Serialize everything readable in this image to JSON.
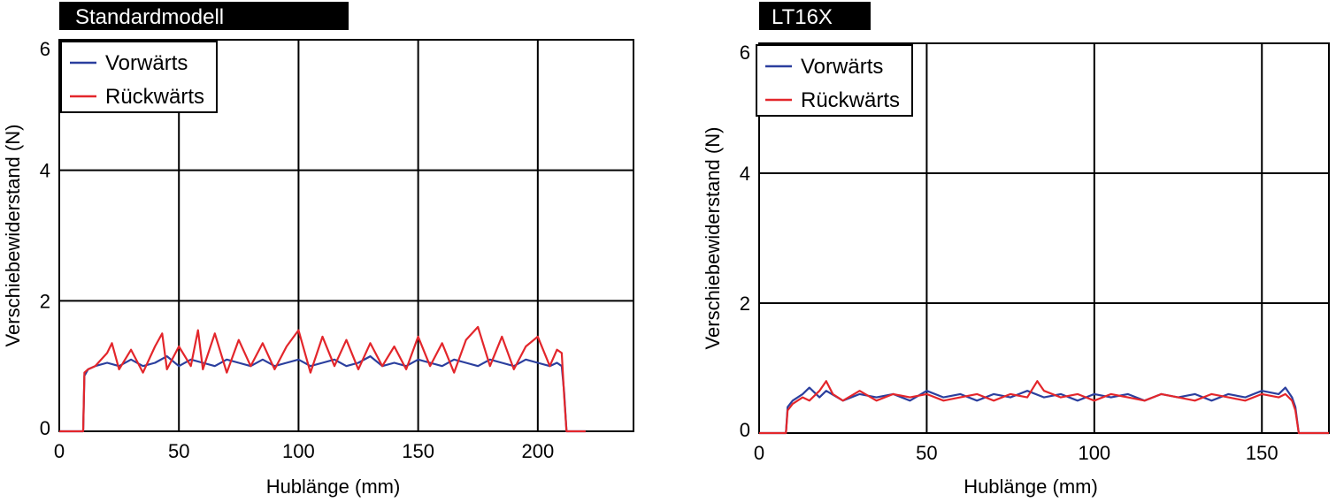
{
  "colors": {
    "forward": "#2b3f9e",
    "backward": "#e3262b",
    "title_bg": "#000000"
  },
  "chart_data": [
    {
      "type": "line",
      "title": "Standardmodell",
      "xlabel": "Hublänge (mm)",
      "ylabel": "Verschiebewiderstand (N)",
      "xlim": [
        0,
        240
      ],
      "ylim": [
        0,
        6
      ],
      "xticks": [
        "0",
        "50",
        "100",
        "150",
        "200"
      ],
      "xtick_values": [
        0,
        50,
        100,
        150,
        200
      ],
      "yticks": [
        "0",
        "2",
        "4",
        "6"
      ],
      "ytick_values": [
        0,
        2,
        4,
        6
      ],
      "grid": true,
      "legend_position": "top-left",
      "series": [
        {
          "name": "Vorwärts",
          "color": "#2b3f9e",
          "x": [
            0,
            10,
            10.5,
            12,
            15,
            20,
            25,
            30,
            35,
            40,
            45,
            50,
            55,
            60,
            65,
            70,
            75,
            80,
            85,
            90,
            95,
            100,
            105,
            110,
            115,
            120,
            125,
            130,
            135,
            140,
            145,
            150,
            155,
            160,
            165,
            170,
            175,
            180,
            185,
            190,
            195,
            200,
            205,
            208,
            210,
            211,
            212,
            220
          ],
          "y": [
            0,
            0,
            0.85,
            0.95,
            1.0,
            1.05,
            1.0,
            1.1,
            1.0,
            1.05,
            1.15,
            1.0,
            1.1,
            1.05,
            1.0,
            1.1,
            1.05,
            1.0,
            1.1,
            1.0,
            1.05,
            1.1,
            1.0,
            1.05,
            1.1,
            1.0,
            1.05,
            1.15,
            1.0,
            1.05,
            1.0,
            1.1,
            1.05,
            1.0,
            1.1,
            1.05,
            1.0,
            1.1,
            1.05,
            1.0,
            1.1,
            1.05,
            1.0,
            1.05,
            1.0,
            0.6,
            0,
            0
          ]
        },
        {
          "name": "Rückwärts",
          "color": "#e3262b",
          "x": [
            0,
            10,
            10.5,
            12,
            15,
            20,
            22,
            25,
            30,
            35,
            40,
            43,
            45,
            50,
            55,
            58,
            60,
            65,
            70,
            75,
            80,
            85,
            90,
            95,
            100,
            105,
            110,
            115,
            120,
            125,
            130,
            135,
            140,
            145,
            150,
            155,
            160,
            165,
            170,
            175,
            180,
            185,
            190,
            195,
            200,
            205,
            208,
            210,
            211,
            212,
            220
          ],
          "y": [
            0,
            0,
            0.9,
            0.95,
            1.0,
            1.2,
            1.35,
            0.95,
            1.25,
            0.9,
            1.3,
            1.5,
            0.95,
            1.3,
            1.0,
            1.55,
            0.95,
            1.5,
            0.9,
            1.4,
            1.0,
            1.35,
            0.95,
            1.3,
            1.55,
            0.9,
            1.45,
            1.0,
            1.4,
            0.95,
            1.35,
            1.0,
            1.3,
            0.95,
            1.45,
            1.0,
            1.35,
            0.9,
            1.4,
            1.6,
            1.0,
            1.45,
            0.95,
            1.3,
            1.45,
            1.0,
            1.25,
            1.2,
            0.55,
            0,
            0
          ]
        }
      ]
    },
    {
      "type": "line",
      "title": "LT16X",
      "xlabel": "Hublänge (mm)",
      "ylabel": "Verschiebewiderstand (N)",
      "xlim": [
        0,
        170
      ],
      "ylim": [
        0,
        6
      ],
      "xticks": [
        "0",
        "50",
        "100",
        "150"
      ],
      "xtick_values": [
        0,
        50,
        100,
        150
      ],
      "yticks": [
        "0",
        "2",
        "4",
        "6"
      ],
      "ytick_values": [
        0,
        2,
        4,
        6
      ],
      "grid": true,
      "legend_position": "top-left",
      "series": [
        {
          "name": "Vorwärts",
          "color": "#2b3f9e",
          "x": [
            0,
            8,
            8.5,
            10,
            13,
            15,
            18,
            20,
            25,
            30,
            35,
            40,
            45,
            50,
            55,
            60,
            65,
            70,
            75,
            80,
            85,
            90,
            95,
            100,
            105,
            110,
            115,
            120,
            125,
            130,
            135,
            140,
            145,
            150,
            155,
            157,
            159,
            160,
            161,
            170
          ],
          "y": [
            0,
            0,
            0.4,
            0.5,
            0.6,
            0.7,
            0.55,
            0.65,
            0.5,
            0.6,
            0.55,
            0.6,
            0.5,
            0.65,
            0.55,
            0.6,
            0.5,
            0.6,
            0.55,
            0.65,
            0.55,
            0.6,
            0.5,
            0.6,
            0.55,
            0.6,
            0.5,
            0.6,
            0.55,
            0.6,
            0.5,
            0.6,
            0.55,
            0.65,
            0.6,
            0.7,
            0.55,
            0.4,
            0,
            0
          ]
        },
        {
          "name": "Rückwärts",
          "color": "#e3262b",
          "x": [
            0,
            8,
            8.5,
            10,
            13,
            15,
            18,
            20,
            22,
            25,
            30,
            35,
            40,
            45,
            50,
            55,
            60,
            65,
            70,
            75,
            80,
            83,
            85,
            90,
            95,
            100,
            105,
            110,
            115,
            120,
            125,
            130,
            135,
            140,
            145,
            150,
            155,
            157,
            159,
            160,
            161,
            170
          ],
          "y": [
            0,
            0,
            0.35,
            0.45,
            0.55,
            0.5,
            0.65,
            0.8,
            0.6,
            0.5,
            0.65,
            0.5,
            0.6,
            0.55,
            0.6,
            0.5,
            0.55,
            0.6,
            0.5,
            0.6,
            0.55,
            0.8,
            0.65,
            0.55,
            0.6,
            0.5,
            0.6,
            0.55,
            0.5,
            0.6,
            0.55,
            0.5,
            0.6,
            0.55,
            0.5,
            0.6,
            0.55,
            0.6,
            0.5,
            0.35,
            0,
            0
          ]
        }
      ]
    }
  ]
}
